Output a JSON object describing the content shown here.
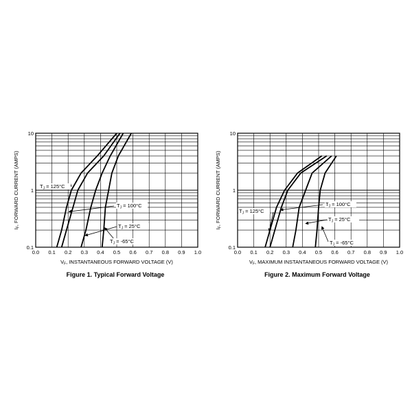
{
  "chart_data": [
    {
      "type": "line",
      "caption": "Figure 1. Typical Forward Voltage",
      "xlabel_prefix": "V",
      "xlabel_sub": "F",
      "xlabel_text": ", INSTANTANEOUS FORWARD VOLTAGE (V)",
      "ylabel_prefix": "I",
      "ylabel_sub": "F",
      "ylabel_text": ", FORWARD CURRENT (AMPS)",
      "xlim": [
        0,
        1.0
      ],
      "ylim": [
        0.1,
        10
      ],
      "yscale": "log",
      "grid": true,
      "x_ticks": [
        "0.0",
        "0.1",
        "0.2",
        "0.3",
        "0.4",
        "0.5",
        "0.6",
        "0.7",
        "0.8",
        "0.9",
        "1.0"
      ],
      "y_ticks": [
        "0.1",
        "1",
        "10"
      ],
      "series": [
        {
          "name": "T_J = 125°C",
          "label_main": "T",
          "label_sub": "J",
          "label_rest": " = 125°C",
          "points": [
            [
              0.13,
              0.1
            ],
            [
              0.16,
              0.2
            ],
            [
              0.19,
              0.5
            ],
            [
              0.22,
              1.0
            ],
            [
              0.28,
              2.0
            ],
            [
              0.38,
              4.0
            ],
            [
              0.5,
              10.0
            ]
          ]
        },
        {
          "name": "T_J = 100°C",
          "label_main": "T",
          "label_sub": "J",
          "label_rest": " = 100°C",
          "points": [
            [
              0.16,
              0.1
            ],
            [
              0.19,
              0.2
            ],
            [
              0.23,
              0.5
            ],
            [
              0.26,
              1.0
            ],
            [
              0.32,
              2.0
            ],
            [
              0.42,
              4.0
            ],
            [
              0.52,
              10.0
            ]
          ]
        },
        {
          "name": "T_J = 25°C",
          "label_main": "T",
          "label_sub": "J",
          "label_rest": " = 25°C",
          "points": [
            [
              0.28,
              0.1
            ],
            [
              0.31,
              0.2
            ],
            [
              0.34,
              0.5
            ],
            [
              0.37,
              1.0
            ],
            [
              0.41,
              2.0
            ],
            [
              0.46,
              4.0
            ],
            [
              0.54,
              10.0
            ]
          ]
        },
        {
          "name": "T_J = -65°C",
          "label_main": "T",
          "label_sub": "J",
          "label_rest": " = -65°C",
          "points": [
            [
              0.41,
              0.1
            ],
            [
              0.42,
              0.2
            ],
            [
              0.43,
              0.5
            ],
            [
              0.45,
              1.0
            ],
            [
              0.47,
              2.0
            ],
            [
              0.51,
              4.0
            ],
            [
              0.59,
              10.0
            ]
          ]
        }
      ]
    },
    {
      "type": "line",
      "caption": "Figure 2. Maximum Forward Voltage",
      "xlabel_prefix": "V",
      "xlabel_sub": "F",
      "xlabel_text": ", MAXIMUM INSTANTANEOUS FORWARD VOLTAGE (V)",
      "ylabel_prefix": "I",
      "ylabel_sub": "F",
      "ylabel_text": ", FORWARD CURRENT (AMPS)",
      "xlim": [
        0,
        1.0
      ],
      "ylim": [
        0.1,
        10
      ],
      "yscale": "log",
      "grid": true,
      "x_ticks": [
        "0.0",
        "0.1",
        "0.2",
        "0.3",
        "0.4",
        "0.5",
        "0.6",
        "0.7",
        "0.8",
        "0.9",
        "1.0"
      ],
      "y_ticks": [
        "0.1",
        "1",
        "10"
      ],
      "series": [
        {
          "name": "T_J = 125°C",
          "label_main": "T",
          "label_sub": "J",
          "label_rest": " = 125°C",
          "points": [
            [
              0.17,
              0.1
            ],
            [
              0.2,
              0.2
            ],
            [
              0.24,
              0.5
            ],
            [
              0.29,
              1.0
            ],
            [
              0.37,
              2.0
            ],
            [
              0.52,
              4.0
            ]
          ]
        },
        {
          "name": "T_J = 100°C",
          "label_main": "T",
          "label_sub": "J",
          "label_rest": " = 100°C",
          "points": [
            [
              0.2,
              0.1
            ],
            [
              0.23,
              0.2
            ],
            [
              0.27,
              0.5
            ],
            [
              0.31,
              1.0
            ],
            [
              0.39,
              2.0
            ],
            [
              0.55,
              4.0
            ]
          ]
        },
        {
          "name": "T_J = 25°C",
          "label_main": "T",
          "label_sub": "J",
          "label_rest": " = 25°C",
          "points": [
            [
              0.34,
              0.1
            ],
            [
              0.36,
              0.2
            ],
            [
              0.38,
              0.5
            ],
            [
              0.42,
              1.0
            ],
            [
              0.46,
              2.0
            ],
            [
              0.58,
              4.0
            ]
          ]
        },
        {
          "name": "T_J = -65°C",
          "label_main": "T",
          "label_sub": "J",
          "label_rest": " = -65°C",
          "points": [
            [
              0.48,
              0.1
            ],
            [
              0.49,
              0.2
            ],
            [
              0.5,
              0.5
            ],
            [
              0.51,
              1.0
            ],
            [
              0.54,
              2.0
            ],
            [
              0.61,
              4.0
            ]
          ]
        }
      ]
    }
  ]
}
